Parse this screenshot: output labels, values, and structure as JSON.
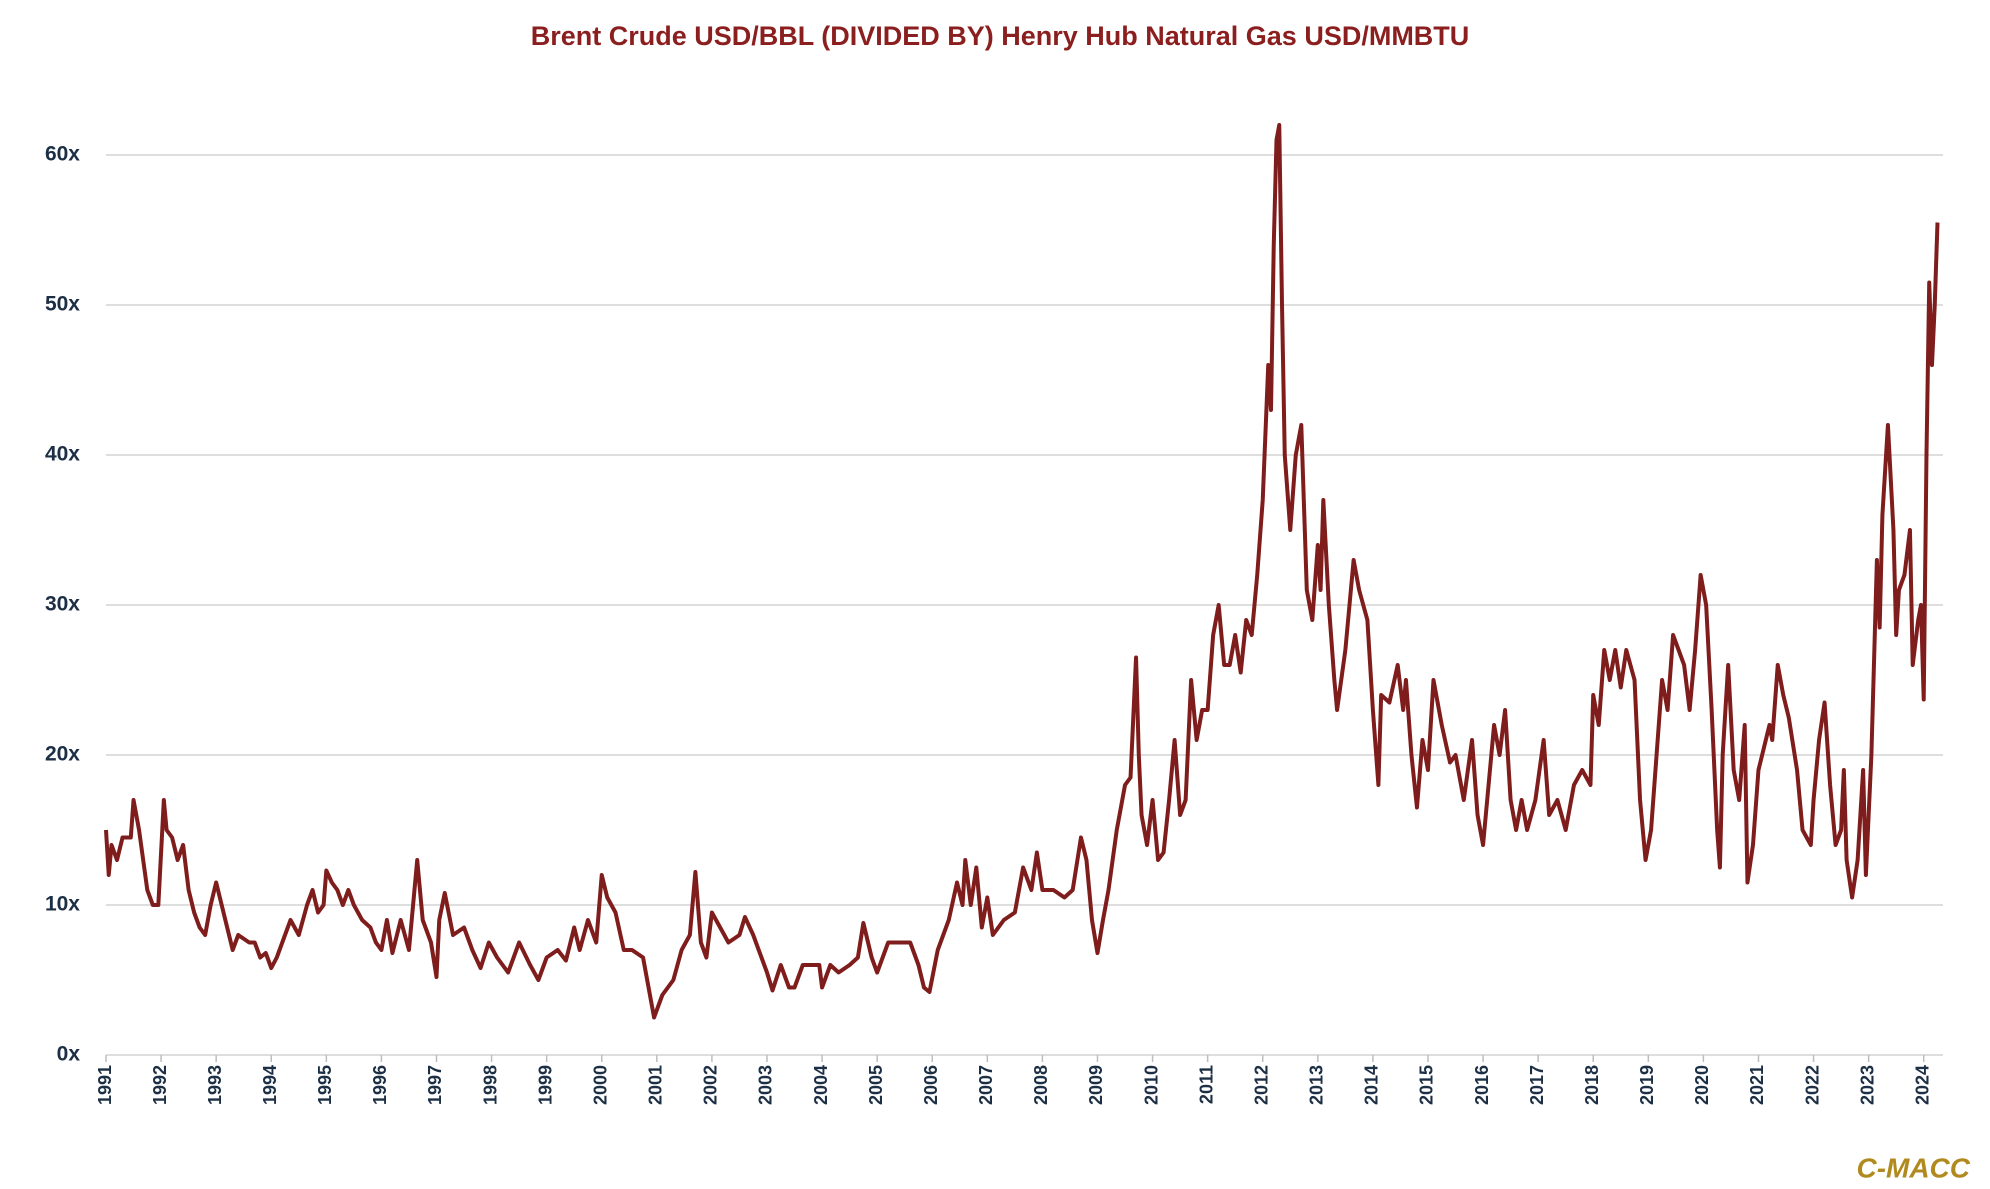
{
  "chart_data": {
    "type": "line",
    "title": "Brent Crude USD/BBL (DIVIDED BY) Henry Hub Natural Gas USD/MMBTU",
    "source": "C-MACC",
    "color": "#7f1d1d",
    "grid": true,
    "xlim": [
      1991,
      2024.35
    ],
    "xticks": [
      1991,
      1992,
      1993,
      1994,
      1995,
      1996,
      1997,
      1998,
      1999,
      2000,
      2001,
      2002,
      2003,
      2004,
      2005,
      2006,
      2007,
      2008,
      2009,
      2010,
      2011,
      2012,
      2013,
      2014,
      2015,
      2016,
      2017,
      2018,
      2019,
      2020,
      2021,
      2022,
      2023,
      2024
    ],
    "ylim": [
      0,
      65
    ],
    "yticks": [
      {
        "value": 0,
        "label": "0x"
      },
      {
        "value": 10,
        "label": "10x"
      },
      {
        "value": 20,
        "label": "20x"
      },
      {
        "value": 30,
        "label": "30x"
      },
      {
        "value": 40,
        "label": "40x"
      },
      {
        "value": 50,
        "label": "50x"
      },
      {
        "value": 60,
        "label": "60x"
      }
    ],
    "x": [
      1991.0,
      1991.05,
      1991.1,
      1991.2,
      1991.3,
      1991.45,
      1991.5,
      1991.6,
      1991.75,
      1991.85,
      1991.95,
      1992.05,
      1992.1,
      1992.2,
      1992.3,
      1992.4,
      1992.5,
      1992.6,
      1992.7,
      1992.8,
      1992.9,
      1993.0,
      1993.1,
      1993.2,
      1993.3,
      1993.4,
      1993.6,
      1993.7,
      1993.8,
      1993.9,
      1994.0,
      1994.1,
      1994.2,
      1994.35,
      1994.5,
      1994.65,
      1994.75,
      1994.85,
      1994.95,
      1995.0,
      1995.1,
      1995.2,
      1995.3,
      1995.4,
      1995.5,
      1995.65,
      1995.8,
      1995.9,
      1996.0,
      1996.1,
      1996.2,
      1996.35,
      1996.5,
      1996.65,
      1996.75,
      1996.9,
      1997.0,
      1997.05,
      1997.15,
      1997.3,
      1997.5,
      1997.65,
      1997.8,
      1997.95,
      1998.1,
      1998.3,
      1998.5,
      1998.7,
      1998.85,
      1999.0,
      1999.2,
      1999.35,
      1999.5,
      1999.6,
      1999.75,
      1999.9,
      2000.0,
      2000.1,
      2000.25,
      2000.4,
      2000.55,
      2000.75,
      2000.85,
      2000.95,
      2001.1,
      2001.3,
      2001.45,
      2001.6,
      2001.7,
      2001.8,
      2001.9,
      2002.0,
      2002.15,
      2002.3,
      2002.5,
      2002.6,
      2002.75,
      2002.9,
      2003.0,
      2003.1,
      2003.25,
      2003.4,
      2003.5,
      2003.65,
      2003.8,
      2003.95,
      2004.0,
      2004.15,
      2004.3,
      2004.5,
      2004.65,
      2004.75,
      2004.9,
      2005.0,
      2005.2,
      2005.4,
      2005.6,
      2005.75,
      2005.85,
      2005.95,
      2006.1,
      2006.3,
      2006.45,
      2006.55,
      2006.6,
      2006.7,
      2006.8,
      2006.9,
      2007.0,
      2007.1,
      2007.3,
      2007.5,
      2007.65,
      2007.8,
      2007.9,
      2008.0,
      2008.2,
      2008.4,
      2008.55,
      2008.7,
      2008.8,
      2008.9,
      2009.0,
      2009.1,
      2009.2,
      2009.35,
      2009.5,
      2009.6,
      2009.7,
      2009.75,
      2009.8,
      2009.9,
      2010.0,
      2010.1,
      2010.2,
      2010.3,
      2010.4,
      2010.5,
      2010.6,
      2010.7,
      2010.8,
      2010.9,
      2011.0,
      2011.1,
      2011.2,
      2011.3,
      2011.4,
      2011.5,
      2011.6,
      2011.7,
      2011.8,
      2011.9,
      2012.0,
      2012.1,
      2012.15,
      2012.2,
      2012.25,
      2012.3,
      2012.35,
      2012.4,
      2012.5,
      2012.6,
      2012.7,
      2012.8,
      2012.9,
      2013.0,
      2013.05,
      2013.1,
      2013.2,
      2013.3,
      2013.35,
      2013.5,
      2013.65,
      2013.75,
      2013.9,
      2014.0,
      2014.1,
      2014.15,
      2014.3,
      2014.45,
      2014.55,
      2014.6,
      2014.7,
      2014.8,
      2014.9,
      2015.0,
      2015.1,
      2015.25,
      2015.4,
      2015.5,
      2015.65,
      2015.8,
      2015.9,
      2016.0,
      2016.1,
      2016.2,
      2016.3,
      2016.4,
      2016.5,
      2016.6,
      2016.7,
      2016.8,
      2016.95,
      2017.1,
      2017.2,
      2017.35,
      2017.5,
      2017.65,
      2017.8,
      2017.95,
      2018.0,
      2018.1,
      2018.2,
      2018.3,
      2018.4,
      2018.5,
      2018.6,
      2018.75,
      2018.85,
      2018.95,
      2019.05,
      2019.15,
      2019.25,
      2019.35,
      2019.45,
      2019.55,
      2019.65,
      2019.75,
      2019.85,
      2019.95,
      2020.05,
      2020.15,
      2020.25,
      2020.3,
      2020.35,
      2020.45,
      2020.55,
      2020.65,
      2020.75,
      2020.8,
      2020.9,
      2021.0,
      2021.1,
      2021.2,
      2021.25,
      2021.35,
      2021.45,
      2021.55,
      2021.7,
      2021.8,
      2021.95,
      2022.0,
      2022.1,
      2022.2,
      2022.3,
      2022.4,
      2022.5,
      2022.55,
      2022.6,
      2022.7,
      2022.8,
      2022.9,
      2022.95,
      2023.05,
      2023.15,
      2023.2,
      2023.25,
      2023.35,
      2023.45,
      2023.5,
      2023.55,
      2023.65,
      2023.75,
      2023.8,
      2023.9,
      2023.95,
      2024.0,
      2024.05,
      2024.1,
      2024.15,
      2024.2,
      2024.25
    ],
    "values": [
      15,
      12,
      14,
      13,
      14.5,
      14.5,
      17,
      15,
      11,
      10,
      10,
      17,
      15,
      14.5,
      13,
      14,
      11,
      9.5,
      8.5,
      8,
      10,
      11.5,
      10,
      8.5,
      7,
      8,
      7.5,
      7.5,
      6.5,
      6.8,
      5.8,
      6.5,
      7.5,
      9,
      8,
      10,
      11,
      9.5,
      10,
      12.3,
      11.5,
      11,
      10,
      11,
      10,
      9,
      8.5,
      7.5,
      7,
      9,
      6.8,
      9,
      7,
      13,
      9,
      7.5,
      5.2,
      9,
      10.8,
      8,
      8.5,
      7,
      5.8,
      7.5,
      6.5,
      5.5,
      7.5,
      6,
      5,
      6.5,
      7,
      6.3,
      8.5,
      7,
      9,
      7.5,
      12,
      10.5,
      9.5,
      7,
      7,
      6.5,
      4.5,
      2.5,
      4,
      5,
      7,
      8,
      12.2,
      7.5,
      6.5,
      9.5,
      8.5,
      7.5,
      8,
      9.2,
      8,
      6.5,
      5.5,
      4.3,
      6,
      4.5,
      4.5,
      6,
      6,
      6,
      4.5,
      6,
      5.5,
      6,
      6.5,
      8.8,
      6.5,
      5.5,
      7.5,
      7.5,
      7.5,
      6,
      4.5,
      4.2,
      7,
      9,
      11.5,
      10,
      13,
      10,
      12.5,
      8.5,
      10.5,
      8,
      9,
      9.5,
      12.5,
      11,
      13.5,
      11,
      11,
      10.5,
      11,
      14.5,
      13,
      9,
      6.8,
      9,
      11,
      15,
      18,
      18.5,
      26.5,
      20,
      16,
      14,
      17,
      13,
      13.5,
      17,
      21,
      16,
      17,
      25,
      21,
      23,
      23,
      28,
      30,
      26,
      26,
      28,
      25.5,
      29,
      28,
      32,
      37,
      46,
      43,
      54,
      61,
      62,
      50,
      40,
      35,
      40,
      42,
      31,
      29,
      34,
      31,
      37,
      30,
      25,
      23,
      27,
      33,
      31,
      29,
      23,
      18,
      24,
      23.5,
      26,
      23,
      25,
      20,
      16.5,
      21,
      19,
      25,
      22,
      19.5,
      20,
      17,
      21,
      16,
      14,
      18,
      22,
      20,
      23,
      17,
      15,
      17,
      15,
      17,
      21,
      16,
      17,
      15,
      18,
      19,
      18,
      24,
      22,
      27,
      25,
      27,
      24.5,
      27,
      25,
      17,
      13,
      15,
      20,
      25,
      23,
      28,
      27,
      26,
      23,
      27,
      32,
      30,
      23,
      15,
      12.5,
      20,
      26,
      19,
      17,
      22,
      11.5,
      14,
      19,
      20.5,
      22,
      21,
      26,
      24,
      22.5,
      19,
      15,
      14,
      17,
      21,
      23.5,
      18,
      14,
      15,
      19,
      13,
      10.5,
      13,
      19,
      12,
      20,
      33,
      28.5,
      36,
      42,
      35,
      28,
      31,
      32,
      35,
      26,
      29,
      30,
      23.7,
      40,
      51.5,
      46,
      50,
      55.5
    ]
  }
}
